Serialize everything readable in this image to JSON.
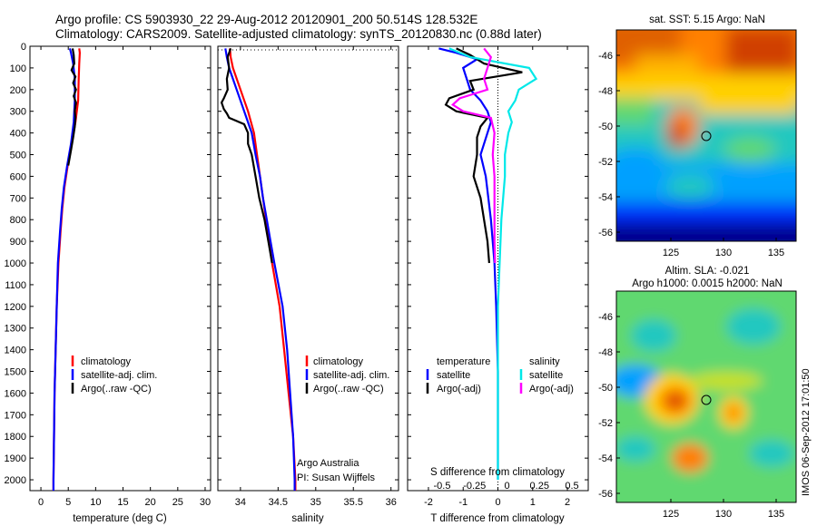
{
  "header": {
    "line1": "Argo profile: CS 5903930_22 29-Aug-2012 20120901_200 50.514S 128.532E",
    "line2": "Climatology: CARS2009. Satellite-adjusted climatology: synTS_20120830.nc (0.88d later)"
  },
  "side_note": "IMOS 06-Sep-2012 17:01:50",
  "map_sst": {
    "title": "sat. SST: 5.15 Argo: NaN",
    "yticks": [
      "-46",
      "-48",
      "-50",
      "-52",
      "-54",
      "-56"
    ],
    "xticks": [
      "125",
      "130",
      "135"
    ],
    "colors": [
      "#00008f",
      "#0030ff",
      "#00a0ff",
      "#20c8c0",
      "#60d870",
      "#c8e020",
      "#ffd000",
      "#ff8000",
      "#d04000",
      "#800000"
    ]
  },
  "map_sla": {
    "title1": "Altim. SLA: -0.021",
    "title2": "Argo h1000: 0.0015 h2000: NaN",
    "yticks": [
      "-46",
      "-48",
      "-50",
      "-52",
      "-54",
      "-56"
    ],
    "xticks": [
      "125",
      "130",
      "135"
    ]
  },
  "annotations": {
    "argo_australia": "Argo Australia",
    "pi": "PI: Susan Wijffels"
  },
  "legend_labels": {
    "climatology": "climatology",
    "sat_adj": "satellite-adj. clim.",
    "argo_raw": "Argo(..raw -QC)",
    "temperature": "temperature",
    "salinity": "salinity",
    "satellite": "satellite",
    "argo_adj": "Argo(-adj)"
  },
  "colors": {
    "climatology": "#ff0000",
    "satellite_adj": "#0000ff",
    "argo": "#000000",
    "sal_satellite": "#00e8e8",
    "sal_argo": "#ff00ff"
  },
  "chart_data": [
    {
      "type": "line",
      "xlabel": "temperature (deg C)",
      "ylabel": "",
      "xlim": [
        -2,
        31
      ],
      "ylim": [
        2050,
        0
      ],
      "xticks": [
        "0",
        "5",
        "10",
        "15",
        "20",
        "25",
        "30"
      ],
      "yticks": [
        "0",
        "100",
        "200",
        "300",
        "400",
        "500",
        "600",
        "700",
        "800",
        "900",
        "1000",
        "1100",
        "1200",
        "1300",
        "1400",
        "1500",
        "1600",
        "1700",
        "1800",
        "1900",
        "2000"
      ],
      "series": [
        {
          "name": "climatology",
          "y": [
            10,
            30,
            80,
            150,
            250,
            350,
            450,
            550,
            650,
            750,
            850,
            1000,
            1200,
            1400,
            1600,
            1800,
            2000,
            2050
          ],
          "x": [
            7.0,
            7.1,
            7.0,
            6.9,
            6.8,
            6.3,
            5.6,
            4.9,
            4.3,
            3.9,
            3.6,
            3.2,
            2.9,
            2.7,
            2.5,
            2.4,
            2.3,
            2.3
          ]
        },
        {
          "name": "satellite-adj. clim.",
          "y": [
            10,
            30,
            80,
            150,
            250,
            350,
            450,
            550,
            650,
            750,
            850,
            1000,
            1200,
            1400,
            1600,
            1800,
            2000,
            2050
          ],
          "x": [
            5.3,
            5.5,
            5.9,
            6.2,
            6.2,
            6.0,
            5.5,
            4.8,
            4.2,
            3.8,
            3.5,
            3.1,
            2.9,
            2.7,
            2.5,
            2.4,
            2.3,
            2.3
          ]
        },
        {
          "name": "Argo(..raw -QC)",
          "y": [
            10,
            40,
            80,
            110,
            140,
            170,
            200,
            230,
            260,
            300,
            330,
            370,
            420,
            480,
            550
          ],
          "x": [
            5.8,
            6.0,
            6.1,
            5.6,
            6.3,
            5.9,
            6.4,
            6.0,
            6.4,
            6.2,
            6.3,
            6.2,
            5.9,
            5.5,
            5.0
          ]
        }
      ]
    },
    {
      "type": "line",
      "xlabel": "salinity",
      "ylabel": "",
      "xlim": [
        33.7,
        36.1
      ],
      "ylim": [
        2050,
        0
      ],
      "xticks": [
        "34",
        "34.5",
        "35",
        "35.5",
        "36"
      ],
      "series": [
        {
          "name": "climatology",
          "y": [
            10,
            50,
            100,
            200,
            300,
            400,
            500,
            600,
            700,
            800,
            900,
            1000,
            1200,
            1400,
            1600,
            1800,
            2000,
            2050
          ],
          "x": [
            33.86,
            33.87,
            33.9,
            34.0,
            34.1,
            34.18,
            34.22,
            34.26,
            34.3,
            34.34,
            34.38,
            34.42,
            34.52,
            34.58,
            34.64,
            34.7,
            34.73,
            34.73
          ]
        },
        {
          "name": "satellite-adj. clim.",
          "y": [
            10,
            50,
            100,
            200,
            300,
            400,
            500,
            600,
            700,
            800,
            900,
            1000,
            1200,
            1400,
            1600,
            1800,
            2000,
            2050
          ],
          "x": [
            33.8,
            33.82,
            33.85,
            33.95,
            34.05,
            34.15,
            34.2,
            34.26,
            34.3,
            34.35,
            34.4,
            34.45,
            34.56,
            34.62,
            34.66,
            34.7,
            34.72,
            34.72
          ]
        },
        {
          "name": "Argo(..raw -QC)",
          "y": [
            10,
            50,
            100,
            150,
            200,
            240,
            260,
            290,
            310,
            330,
            360,
            400,
            450,
            500,
            600,
            700,
            800,
            900,
            1000
          ],
          "x": [
            33.87,
            33.83,
            33.85,
            33.82,
            33.83,
            33.78,
            33.75,
            33.78,
            33.82,
            33.85,
            34.05,
            34.1,
            34.1,
            34.15,
            34.2,
            34.25,
            34.32,
            34.37,
            34.42
          ]
        }
      ]
    },
    {
      "type": "line",
      "xlabel": "T difference from climatology",
      "title": "S difference from climatology",
      "xlim": [
        -2.6,
        2.6
      ],
      "ylim": [
        2050,
        0
      ],
      "xticks": [
        "-2",
        "-1",
        "0",
        "1",
        "2"
      ],
      "xticks_top": [
        "-0.5",
        "-0.25",
        "0",
        "0.25",
        "0.5"
      ],
      "series": [
        {
          "name": "temperature satellite",
          "y": [
            10,
            30,
            60,
            100,
            150,
            200,
            250,
            300,
            350,
            400,
            450,
            500,
            600,
            800,
            1000,
            1200,
            1500,
            1800,
            2000
          ],
          "x": [
            -1.7,
            -1.2,
            -0.6,
            -1.0,
            -0.9,
            -0.8,
            -0.5,
            -0.3,
            -0.2,
            -0.3,
            -0.4,
            -0.5,
            -0.35,
            -0.2,
            -0.1,
            -0.05,
            0.0,
            0.0,
            0.0
          ]
        },
        {
          "name": "temperature Argo(-adj)",
          "y": [
            10,
            40,
            80,
            120,
            160,
            200,
            240,
            270,
            300,
            330,
            370,
            420,
            500,
            600,
            700,
            800,
            900,
            1000
          ],
          "x": [
            -1.2,
            -0.8,
            -0.4,
            0.7,
            -0.8,
            -0.7,
            -1.4,
            -1.5,
            -1.2,
            -0.3,
            -0.5,
            -0.6,
            -0.6,
            -0.7,
            -0.5,
            -0.4,
            -0.3,
            -0.25
          ]
        },
        {
          "name": "salinity satellite",
          "y": [
            10,
            50,
            100,
            150,
            200,
            250,
            300,
            350,
            400,
            500,
            600,
            800,
            1000,
            1200,
            1500,
            1800,
            2000
          ],
          "x": [
            -1.4,
            -0.8,
            0.9,
            1.1,
            0.6,
            0.5,
            0.3,
            0.4,
            0.3,
            0.2,
            0.2,
            0.1,
            0.05,
            0.0,
            0.0,
            0.0,
            0.0
          ]
        },
        {
          "name": "salinity Argo(-adj)",
          "y": [
            10,
            50,
            100,
            150,
            200,
            240,
            270,
            300,
            330,
            400,
            500,
            600,
            700,
            800,
            900,
            1000
          ],
          "x": [
            -0.4,
            -0.2,
            -0.3,
            -0.4,
            -0.3,
            -1.1,
            -1.3,
            -1.0,
            -0.2,
            -0.1,
            -0.15,
            -0.1,
            -0.1,
            -0.1,
            -0.1,
            -0.08
          ]
        }
      ]
    }
  ]
}
